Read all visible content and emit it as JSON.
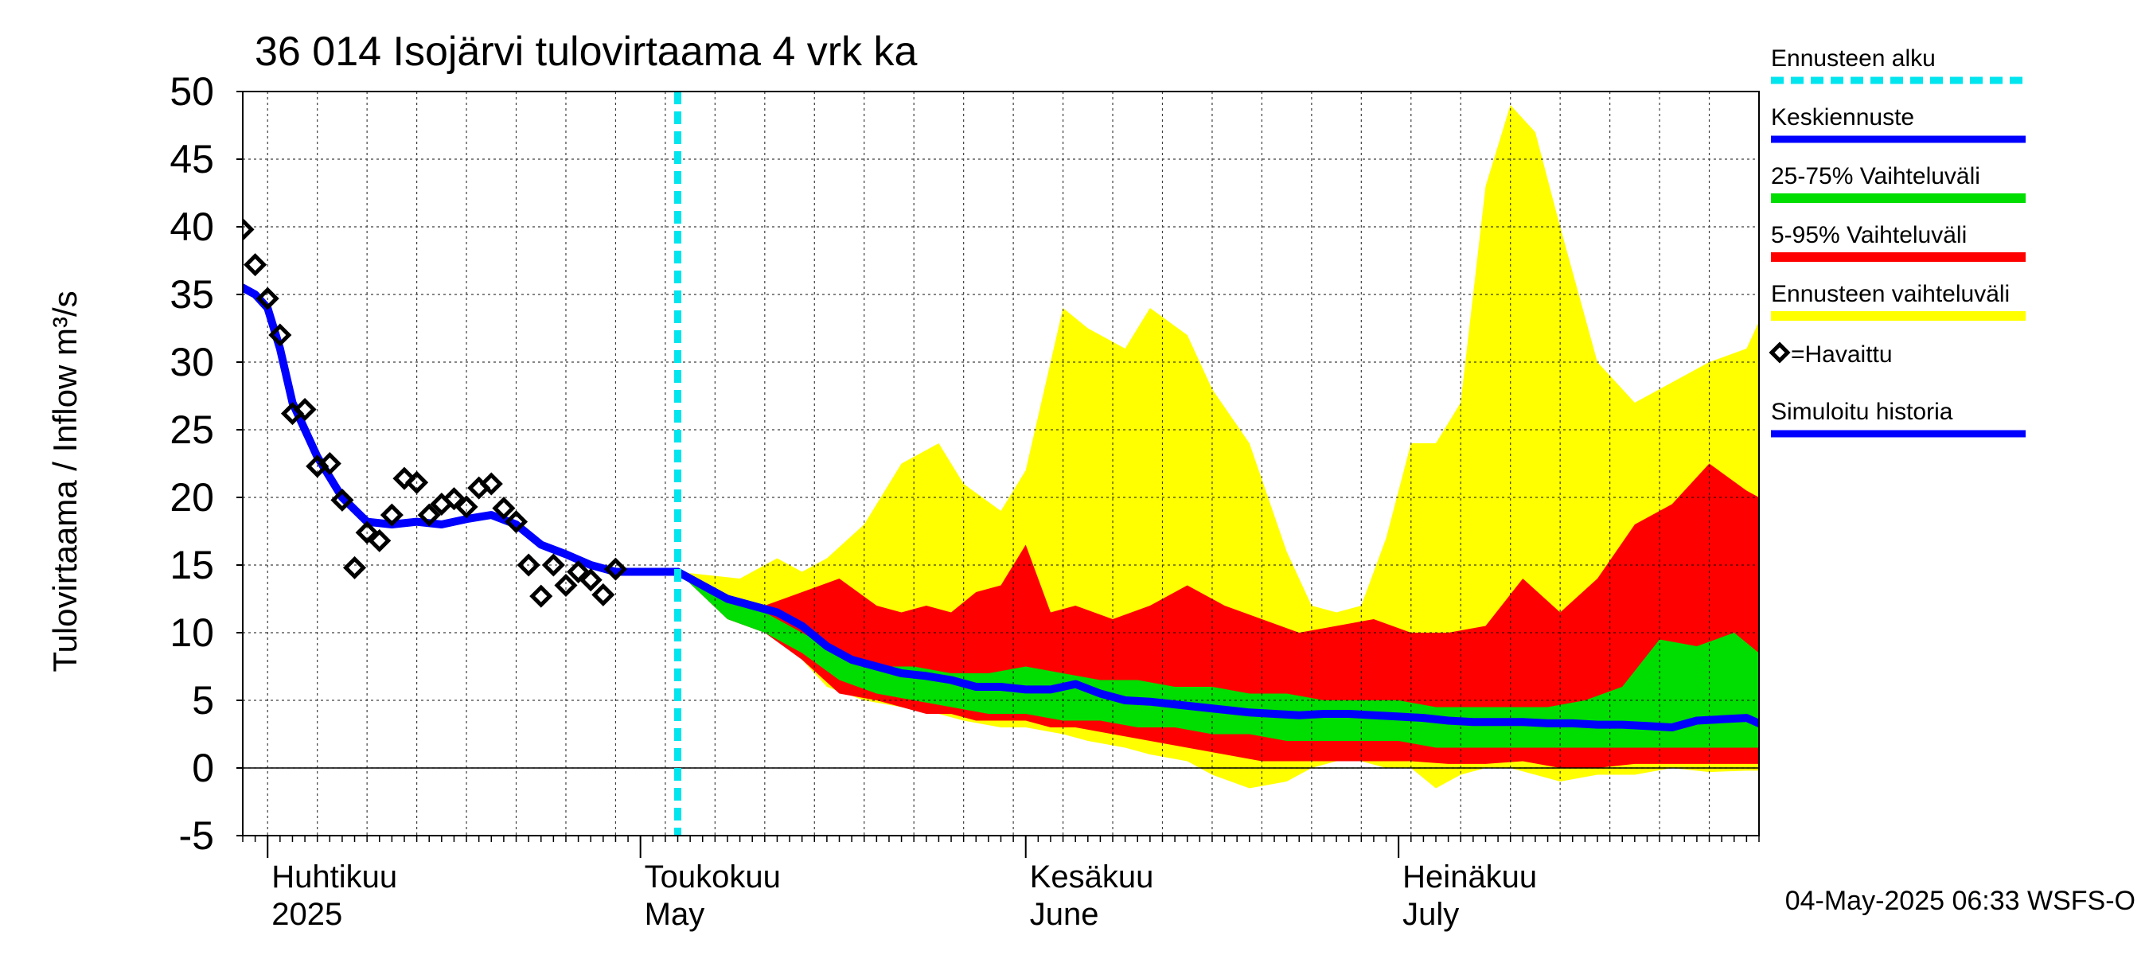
{
  "chart_data": {
    "type": "area",
    "title": "36 014 Isojärvi tulovirtaama 4 vrk ka",
    "ylabel": "Tulovirtaama / Inflow    m³/s",
    "xlabel": "",
    "ylim": [
      -5,
      50
    ],
    "yticks": [
      -5,
      0,
      5,
      10,
      15,
      20,
      25,
      30,
      35,
      40,
      45,
      50
    ],
    "xlim": [
      "2025-03-30",
      "2025-07-30"
    ],
    "grid": true,
    "month_labels": [
      {
        "date": "2025-04-01",
        "line1": "Huhtikuu",
        "line2": "2025"
      },
      {
        "date": "2025-05-01",
        "line1": "Toukokuu",
        "line2": "May"
      },
      {
        "date": "2025-06-01",
        "line1": "Kesäkuu",
        "line2": "June"
      },
      {
        "date": "2025-07-01",
        "line1": "Heinäkuu",
        "line2": "July"
      }
    ],
    "forecast_start": "2025-05-04",
    "legend": {
      "placement": "right",
      "items": [
        {
          "label": "Ennusteen alku",
          "color": "#00e5ee",
          "style": "dashed"
        },
        {
          "label": "Keskiennuste",
          "color": "#0000ff",
          "style": "line"
        },
        {
          "label": "25-75% Vaihteluväli",
          "color": "#00dd00",
          "style": "band"
        },
        {
          "label": "5-95% Vaihteluväli",
          "color": "#ff0000",
          "style": "band"
        },
        {
          "label": "Ennusteen vaihteluväli",
          "color": "#ffff00",
          "style": "band"
        },
        {
          "label": "=Havaittu",
          "color": "#000000",
          "style": "diamond"
        },
        {
          "label": "Simuloitu historia",
          "color": "#0000ff",
          "style": "line"
        }
      ]
    },
    "footer": "04-May-2025 06:33 WSFS-O",
    "series": [
      {
        "name": "Ennusteen vaihteluväli",
        "color": "#ffff00",
        "x": [
          "2025-05-04",
          "2025-05-09",
          "2025-05-12",
          "2025-05-14",
          "2025-05-16",
          "2025-05-19",
          "2025-05-22",
          "2025-05-25",
          "2025-05-27",
          "2025-05-30",
          "2025-06-01",
          "2025-06-04",
          "2025-06-06",
          "2025-06-09",
          "2025-06-11",
          "2025-06-14",
          "2025-06-16",
          "2025-06-19",
          "2025-06-22",
          "2025-06-24",
          "2025-06-26",
          "2025-06-28",
          "2025-06-30",
          "2025-07-02",
          "2025-07-04",
          "2025-07-06",
          "2025-07-08",
          "2025-07-10",
          "2025-07-12",
          "2025-07-14",
          "2025-07-17",
          "2025-07-20",
          "2025-07-23",
          "2025-07-26",
          "2025-07-29",
          "2025-07-30"
        ],
        "upper": [
          14.5,
          14.0,
          15.5,
          14.5,
          15.5,
          18.0,
          22.5,
          24.0,
          21.0,
          19.0,
          22.0,
          34.0,
          32.5,
          31.0,
          34.0,
          32.0,
          28.0,
          24.0,
          16.0,
          12.0,
          11.5,
          12.0,
          17.0,
          24.0,
          24.0,
          27.0,
          43.0,
          49.0,
          47.0,
          40.0,
          30.0,
          27.0,
          28.5,
          30.0,
          31.0,
          33.0
        ],
        "lower": [
          14.5,
          11.0,
          10.0,
          8.0,
          6.0,
          5.0,
          4.5,
          4.0,
          3.5,
          3.0,
          3.0,
          2.5,
          2.0,
          1.5,
          1.0,
          0.5,
          -0.5,
          -1.5,
          -1.0,
          0.0,
          0.5,
          0.5,
          0.0,
          0.0,
          -1.5,
          -0.5,
          0.0,
          0.0,
          -0.5,
          -1.0,
          -0.5,
          -0.5,
          0.0,
          -0.3,
          -0.2,
          -0.2
        ]
      },
      {
        "name": "5-95% Vaihteluväli",
        "color": "#ff0000",
        "x": [
          "2025-05-04",
          "2025-05-08",
          "2025-05-11",
          "2025-05-14",
          "2025-05-17",
          "2025-05-20",
          "2025-05-22",
          "2025-05-24",
          "2025-05-26",
          "2025-05-28",
          "2025-05-30",
          "2025-06-01",
          "2025-06-03",
          "2025-06-05",
          "2025-06-08",
          "2025-06-11",
          "2025-06-14",
          "2025-06-17",
          "2025-06-20",
          "2025-06-23",
          "2025-06-26",
          "2025-06-29",
          "2025-07-02",
          "2025-07-05",
          "2025-07-08",
          "2025-07-11",
          "2025-07-14",
          "2025-07-17",
          "2025-07-20",
          "2025-07-23",
          "2025-07-26",
          "2025-07-29",
          "2025-07-30"
        ],
        "upper": [
          14.5,
          12.5,
          12.0,
          13.0,
          14.0,
          12.0,
          11.5,
          12.0,
          11.5,
          13.0,
          13.5,
          16.5,
          11.5,
          12.0,
          11.0,
          12.0,
          13.5,
          12.0,
          11.0,
          10.0,
          10.5,
          11.0,
          10.0,
          10.0,
          10.5,
          14.0,
          11.5,
          14.0,
          18.0,
          19.5,
          22.5,
          20.5,
          20.0
        ],
        "lower": [
          14.5,
          11.0,
          10.0,
          8.0,
          5.5,
          5.0,
          4.5,
          4.0,
          4.0,
          3.5,
          3.5,
          3.5,
          3.0,
          3.0,
          2.5,
          2.0,
          1.5,
          1.0,
          0.5,
          0.5,
          0.5,
          0.5,
          0.5,
          0.3,
          0.3,
          0.5,
          0.0,
          0.0,
          0.3,
          0.3,
          0.3,
          0.3,
          0.3
        ]
      },
      {
        "name": "25-75% Vaihteluväli",
        "color": "#00dd00",
        "x": [
          "2025-05-04",
          "2025-05-08",
          "2025-05-11",
          "2025-05-14",
          "2025-05-17",
          "2025-05-20",
          "2025-05-23",
          "2025-05-26",
          "2025-05-29",
          "2025-06-01",
          "2025-06-04",
          "2025-06-07",
          "2025-06-10",
          "2025-06-13",
          "2025-06-16",
          "2025-06-19",
          "2025-06-22",
          "2025-06-25",
          "2025-06-28",
          "2025-07-01",
          "2025-07-04",
          "2025-07-07",
          "2025-07-10",
          "2025-07-13",
          "2025-07-16",
          "2025-07-19",
          "2025-07-22",
          "2025-07-25",
          "2025-07-28",
          "2025-07-30"
        ],
        "upper": [
          14.5,
          12.5,
          11.5,
          10.0,
          8.5,
          7.5,
          7.5,
          7.0,
          7.0,
          7.5,
          7.0,
          6.5,
          6.5,
          6.0,
          6.0,
          5.5,
          5.5,
          5.0,
          5.0,
          5.0,
          4.5,
          4.5,
          4.5,
          4.5,
          5.0,
          6.0,
          9.5,
          9.0,
          10.0,
          8.5
        ],
        "lower": [
          14.5,
          11.0,
          10.0,
          8.5,
          6.5,
          5.5,
          5.0,
          4.5,
          4.0,
          4.0,
          3.5,
          3.5,
          3.0,
          3.0,
          2.5,
          2.5,
          2.0,
          2.0,
          2.0,
          2.0,
          1.5,
          1.5,
          1.5,
          1.5,
          1.5,
          1.5,
          1.5,
          1.5,
          1.5,
          1.5
        ]
      },
      {
        "name": "Keskiennuste",
        "color": "#0000ff",
        "x": [
          "2025-05-04",
          "2025-05-06",
          "2025-05-08",
          "2025-05-10",
          "2025-05-12",
          "2025-05-14",
          "2025-05-16",
          "2025-05-18",
          "2025-05-20",
          "2025-05-22",
          "2025-05-24",
          "2025-05-26",
          "2025-05-28",
          "2025-05-30",
          "2025-06-01",
          "2025-06-03",
          "2025-06-05",
          "2025-06-07",
          "2025-06-09",
          "2025-06-11",
          "2025-06-13",
          "2025-06-15",
          "2025-06-17",
          "2025-06-19",
          "2025-06-21",
          "2025-06-23",
          "2025-06-25",
          "2025-06-27",
          "2025-06-29",
          "2025-07-01",
          "2025-07-03",
          "2025-07-05",
          "2025-07-07",
          "2025-07-09",
          "2025-07-11",
          "2025-07-13",
          "2025-07-15",
          "2025-07-17",
          "2025-07-19",
          "2025-07-21",
          "2025-07-23",
          "2025-07-25",
          "2025-07-27",
          "2025-07-29",
          "2025-07-30"
        ],
        "values": [
          14.5,
          13.5,
          12.5,
          12.0,
          11.5,
          10.5,
          9.0,
          8.0,
          7.5,
          7.0,
          6.8,
          6.5,
          6.0,
          6.0,
          5.8,
          5.8,
          6.2,
          5.5,
          5.0,
          4.9,
          4.7,
          4.5,
          4.3,
          4.1,
          4.0,
          3.9,
          4.0,
          4.0,
          3.9,
          3.8,
          3.7,
          3.5,
          3.4,
          3.4,
          3.4,
          3.3,
          3.3,
          3.2,
          3.2,
          3.1,
          3.0,
          3.5,
          3.6,
          3.7,
          3.3
        ]
      },
      {
        "name": "Simuloitu historia",
        "color": "#0000ff",
        "x": [
          "2025-03-30",
          "2025-03-31",
          "2025-04-01",
          "2025-04-02",
          "2025-04-03",
          "2025-04-05",
          "2025-04-07",
          "2025-04-09",
          "2025-04-11",
          "2025-04-13",
          "2025-04-15",
          "2025-04-17",
          "2025-04-19",
          "2025-04-21",
          "2025-04-23",
          "2025-04-25",
          "2025-04-27",
          "2025-04-29",
          "2025-05-01",
          "2025-05-03",
          "2025-05-04"
        ],
        "values": [
          35.5,
          35.0,
          34.0,
          31.0,
          27.0,
          23.0,
          20.0,
          18.2,
          18.0,
          18.2,
          18.0,
          18.4,
          18.7,
          18.0,
          16.5,
          15.8,
          15.0,
          14.5,
          14.5,
          14.5,
          14.5
        ]
      },
      {
        "name": "Havaittu",
        "color": "#000000",
        "marker": "diamond",
        "x": [
          "2025-03-30",
          "2025-03-31",
          "2025-04-01",
          "2025-04-02",
          "2025-04-03",
          "2025-04-04",
          "2025-04-05",
          "2025-04-06",
          "2025-04-07",
          "2025-04-08",
          "2025-04-09",
          "2025-04-10",
          "2025-04-11",
          "2025-04-12",
          "2025-04-13",
          "2025-04-14",
          "2025-04-15",
          "2025-04-16",
          "2025-04-17",
          "2025-04-18",
          "2025-04-19",
          "2025-04-20",
          "2025-04-21",
          "2025-04-22",
          "2025-04-23",
          "2025-04-24",
          "2025-04-25",
          "2025-04-26",
          "2025-04-27",
          "2025-04-28",
          "2025-04-29",
          "2025-04-30",
          "2025-05-02"
        ],
        "values": [
          39.8,
          37.2,
          34.7,
          32.0,
          26.2,
          26.5,
          22.3,
          22.5,
          19.8,
          14.8,
          17.4,
          16.8,
          18.7,
          21.4,
          21.1,
          18.7,
          19.5,
          19.9,
          19.3,
          20.7,
          21.0,
          19.2,
          18.2,
          15.0,
          12.7,
          15.0,
          13.5,
          14.5,
          13.9,
          12.8,
          14.7,
          null,
          null
        ]
      }
    ]
  }
}
